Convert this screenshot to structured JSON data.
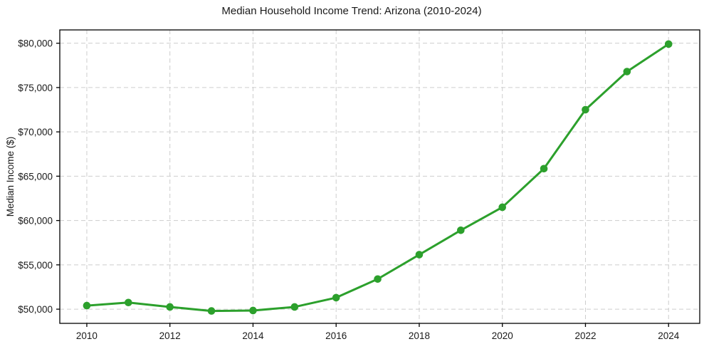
{
  "figure": {
    "background": "#ffffff"
  },
  "chart_data": {
    "type": "line",
    "title": "Median Household Income Trend: Arizona (2010-2024)",
    "xlabel": "",
    "ylabel": "Median Income ($)",
    "x": [
      2010,
      2011,
      2012,
      2013,
      2014,
      2015,
      2016,
      2017,
      2018,
      2019,
      2020,
      2021,
      2022,
      2023,
      2024
    ],
    "series": [
      {
        "color": "#2ca02c",
        "marker": "circle",
        "values": [
          50400,
          50750,
          50250,
          49800,
          49850,
          50250,
          51300,
          53400,
          56150,
          58900,
          61500,
          65850,
          72500,
          76800,
          79900
        ]
      }
    ],
    "x_ticks": [
      2010,
      2012,
      2014,
      2016,
      2018,
      2020,
      2022,
      2024
    ],
    "y_ticks": [
      50000,
      55000,
      60000,
      65000,
      70000,
      75000,
      80000
    ],
    "y_tick_labels": [
      "$50,000",
      "$55,000",
      "$60,000",
      "$65,000",
      "$70,000",
      "$75,000",
      "$80,000"
    ],
    "xlim": [
      2009.35,
      2024.75
    ],
    "ylim": [
      48400,
      81500
    ],
    "grid": true,
    "grid_style": "dashed",
    "grid_color": "#cdcdcd",
    "legend": false,
    "line_width": 3,
    "marker_diameter": 10.6,
    "axis_color": "#000000",
    "text_color": "#1a1a1a"
  }
}
